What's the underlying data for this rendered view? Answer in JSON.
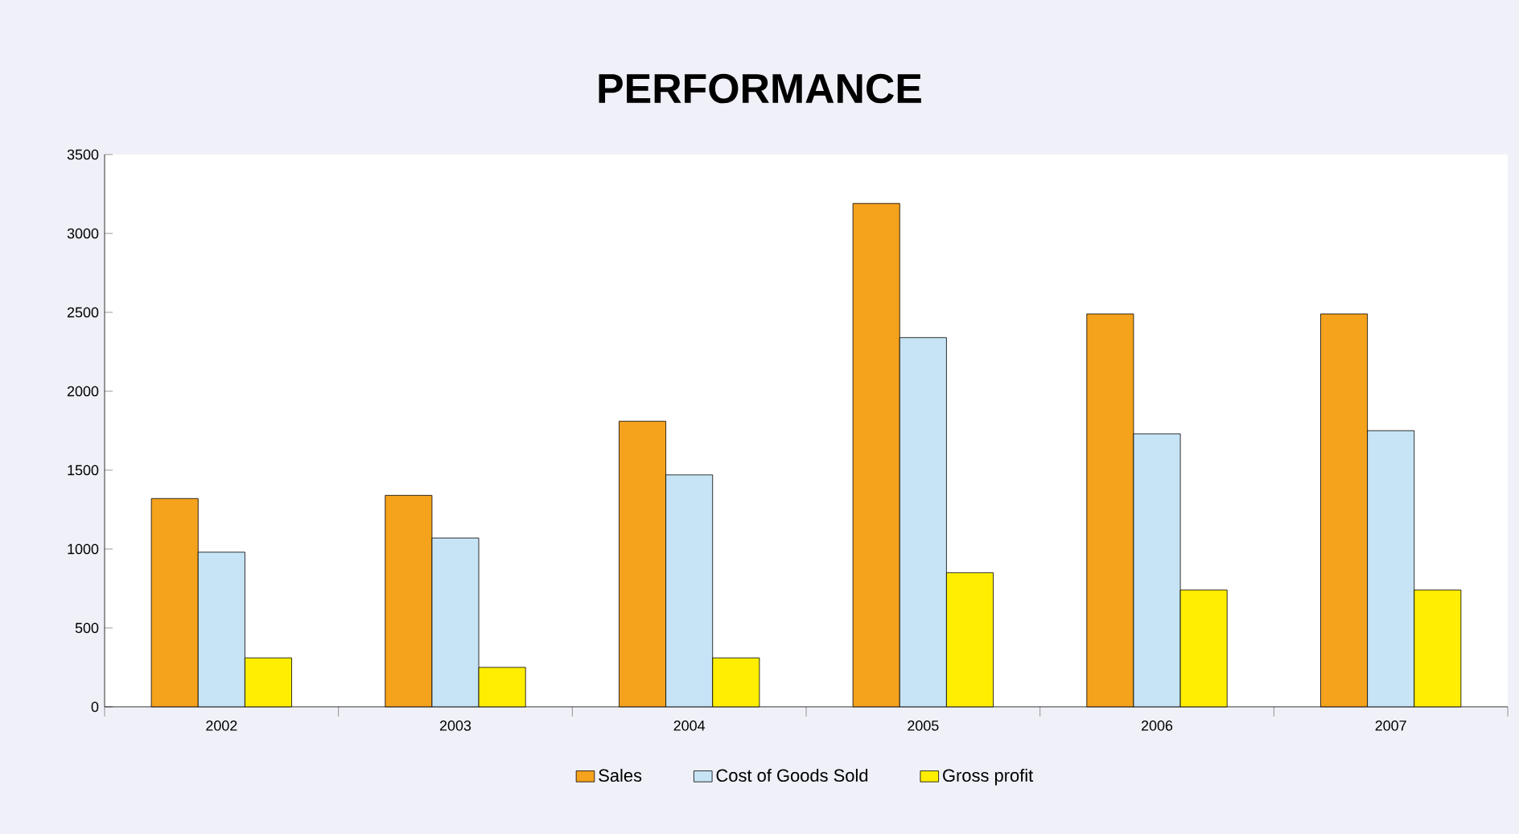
{
  "chart_data": {
    "type": "bar",
    "title": "PERFORMANCE",
    "categories": [
      "2002",
      "2003",
      "2004",
      "2005",
      "2006",
      "2007"
    ],
    "series": [
      {
        "name": "Sales",
        "color": "#f5a21c",
        "values": [
          1320,
          1340,
          1810,
          3190,
          2490,
          2490
        ]
      },
      {
        "name": "Cost of Goods Sold",
        "color": "#c6e4f5",
        "values": [
          980,
          1070,
          1470,
          2340,
          1730,
          1750
        ]
      },
      {
        "name": "Gross profit",
        "color": "#ffee00",
        "values": [
          310,
          250,
          310,
          850,
          740,
          740
        ]
      }
    ],
    "ylim": [
      0,
      3500
    ],
    "yticks": [
      0,
      500,
      1000,
      1500,
      2000,
      2500,
      3000,
      3500
    ],
    "legend": "bottom"
  }
}
